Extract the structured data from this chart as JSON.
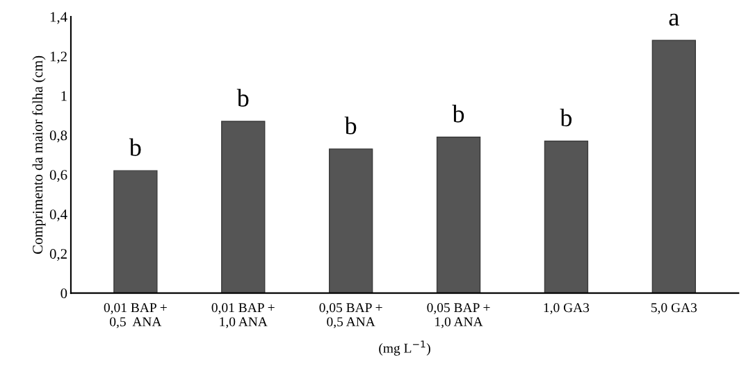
{
  "chart_data": {
    "type": "bar",
    "categories": [
      "0,01 BAP +\n0,5  ANA",
      "0,01 BAP +\n1,0 ANA",
      "0,05 BAP +\n0,5 ANA",
      "0,05 BAP +\n1,0 ANA",
      "1,0 GA3",
      "5,0 GA3"
    ],
    "values": [
      0.62,
      0.87,
      0.73,
      0.79,
      0.77,
      1.28
    ],
    "color": "#555555",
    "xlabel": "(mg L$^{−1}$)",
    "ylabel": "Comprimento da maior folha (cm)",
    "ylim": [
      0,
      1.4
    ],
    "yticks": [
      {
        "value": 0,
        "label": "0"
      },
      {
        "value": 0.2,
        "label": "0,2"
      },
      {
        "value": 0.4,
        "label": "0,4"
      },
      {
        "value": 0.6,
        "label": "0,6"
      },
      {
        "value": 0.8,
        "label": "0,8"
      },
      {
        "value": 1,
        "label": "1"
      },
      {
        "value": 1.2,
        "label": "1,2"
      },
      {
        "value": 1.4,
        "label": "1,4"
      }
    ],
    "grid": false,
    "annotations": [
      {
        "text": "b",
        "x": "0,01 BAP +\n0,5  ANA",
        "y": 0.62
      },
      {
        "text": "b",
        "x": "0,01 BAP +\n1,0 ANA",
        "y": 0.87
      },
      {
        "text": "b",
        "x": "0,05 BAP +\n0,5 ANA",
        "y": 0.73
      },
      {
        "text": "b",
        "x": "0,05 BAP +\n1,0 ANA",
        "y": 0.79
      },
      {
        "text": "b",
        "x": "1,0 GA3",
        "y": 0.77
      },
      {
        "text": "a",
        "x": "5,0 GA3",
        "y": 1.28
      }
    ]
  }
}
